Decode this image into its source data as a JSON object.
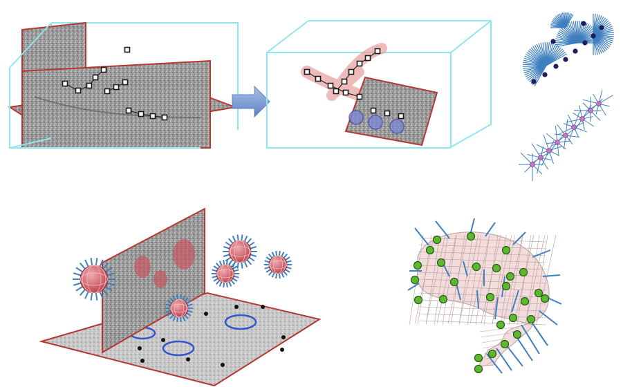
{
  "colors": {
    "box_edge": "#8ee6ee",
    "slice_edge": "#b5372f",
    "slice_fill": "#8c8c8c",
    "point_fill": "#1b1b1b",
    "point_marker": "#ffffff",
    "tube_glow": "#e9a3a3",
    "arrow_fill": "#7f9fd4",
    "spike": "#3f7fbf",
    "sphere_fill": "#c9525a",
    "ring": "#3555c8",
    "mesh_fill": "#f3dcdc",
    "mesh_line": "#b7a0a0",
    "node_fill": "#5cb82e",
    "node_edge": "#2a5a12",
    "particle_dot": "#1c1c5e",
    "particle_dot_alt": "#c07ac9"
  },
  "icons": [
    "arrow-right-icon"
  ]
}
